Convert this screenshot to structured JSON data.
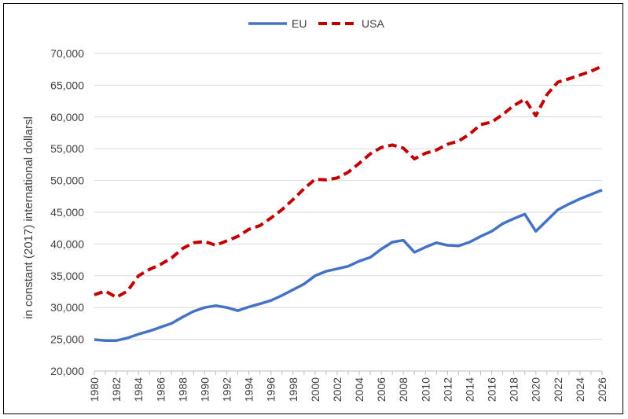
{
  "chart_data": {
    "type": "line",
    "title": "",
    "xlabel": "",
    "ylabel": "in constant (2017) international dollarsl",
    "ylim": [
      20000,
      70000
    ],
    "yticks": [
      20000,
      25000,
      30000,
      35000,
      40000,
      45000,
      50000,
      55000,
      60000,
      65000,
      70000
    ],
    "ytick_labels": [
      "20,000",
      "25,000",
      "30,000",
      "35,000",
      "40,000",
      "45,000",
      "50,000",
      "55,000",
      "60,000",
      "65,000",
      "70,000"
    ],
    "xlim": [
      1980,
      2026
    ],
    "xtick_labels": [
      "1980",
      "1982",
      "1984",
      "1986",
      "1988",
      "1990",
      "1992",
      "1994",
      "1996",
      "1998",
      "2000",
      "2002",
      "2004",
      "2006",
      "2008",
      "2010",
      "2012",
      "2014",
      "2016",
      "2018",
      "2020",
      "2022",
      "2024",
      "2026"
    ],
    "grid": "horizontal",
    "legend": "top-center",
    "x": [
      1980,
      1981,
      1982,
      1983,
      1984,
      1985,
      1986,
      1987,
      1988,
      1989,
      1990,
      1991,
      1992,
      1993,
      1994,
      1995,
      1996,
      1997,
      1998,
      1999,
      2000,
      2001,
      2002,
      2003,
      2004,
      2005,
      2006,
      2007,
      2008,
      2009,
      2010,
      2011,
      2012,
      2013,
      2014,
      2015,
      2016,
      2017,
      2018,
      2019,
      2020,
      2021,
      2022,
      2023,
      2024,
      2025,
      2026
    ],
    "series": [
      {
        "name": "EU",
        "color": "#4472C4",
        "style": "solid",
        "values": [
          24950,
          24800,
          24800,
          25200,
          25800,
          26300,
          26900,
          27500,
          28500,
          29400,
          30000,
          30300,
          30000,
          29500,
          30100,
          30600,
          31100,
          31900,
          32800,
          33700,
          35000,
          35700,
          36100,
          36500,
          37300,
          37900,
          39200,
          40300,
          40600,
          38700,
          39500,
          40200,
          39800,
          39700,
          40300,
          41200,
          42000,
          43200,
          44000,
          44700,
          42000,
          43700,
          45400,
          46300,
          47100,
          47800,
          48500
        ]
      },
      {
        "name": "USA",
        "color": "#C00000",
        "style": "dashed",
        "values": [
          32000,
          32600,
          31600,
          32600,
          35000,
          36000,
          36800,
          37800,
          39300,
          40200,
          40400,
          39800,
          40500,
          41200,
          42300,
          42900,
          44100,
          45400,
          47000,
          48700,
          50200,
          50100,
          50400,
          51300,
          52700,
          54200,
          55200,
          55600,
          55100,
          53400,
          54300,
          54800,
          55700,
          56200,
          57300,
          58800,
          59200,
          60400,
          61800,
          62800,
          60200,
          63500,
          65500,
          66000,
          66600,
          67200,
          68000
        ]
      }
    ]
  }
}
